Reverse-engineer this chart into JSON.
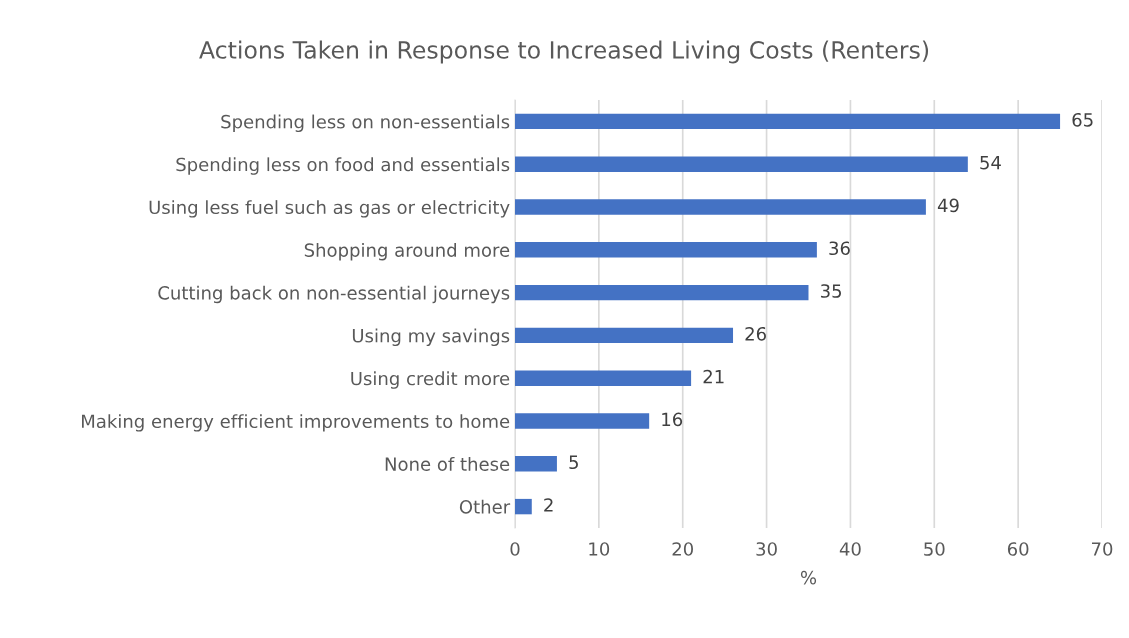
{
  "chart_data": {
    "type": "bar",
    "orientation": "horizontal",
    "title": "Actions Taken in Response to Increased Living Costs (Renters)",
    "xlabel": "%",
    "categories": [
      "Spending less on non-essentials",
      "Spending less on food and essentials",
      "Using less fuel such as gas or electricity",
      "Shopping around more",
      "Cutting back on non-essential journeys",
      "Using my savings",
      "Using credit more",
      "Making energy efficient improvements to home",
      "None of these",
      "Other"
    ],
    "values": [
      65,
      54,
      49,
      36,
      35,
      26,
      21,
      16,
      5,
      2
    ],
    "color": "#4472c4",
    "xlim": [
      0,
      70
    ],
    "xticks": [
      0,
      10,
      20,
      30,
      40,
      50,
      60,
      70
    ],
    "grid": "x",
    "data_labels": true,
    "legend": false
  }
}
